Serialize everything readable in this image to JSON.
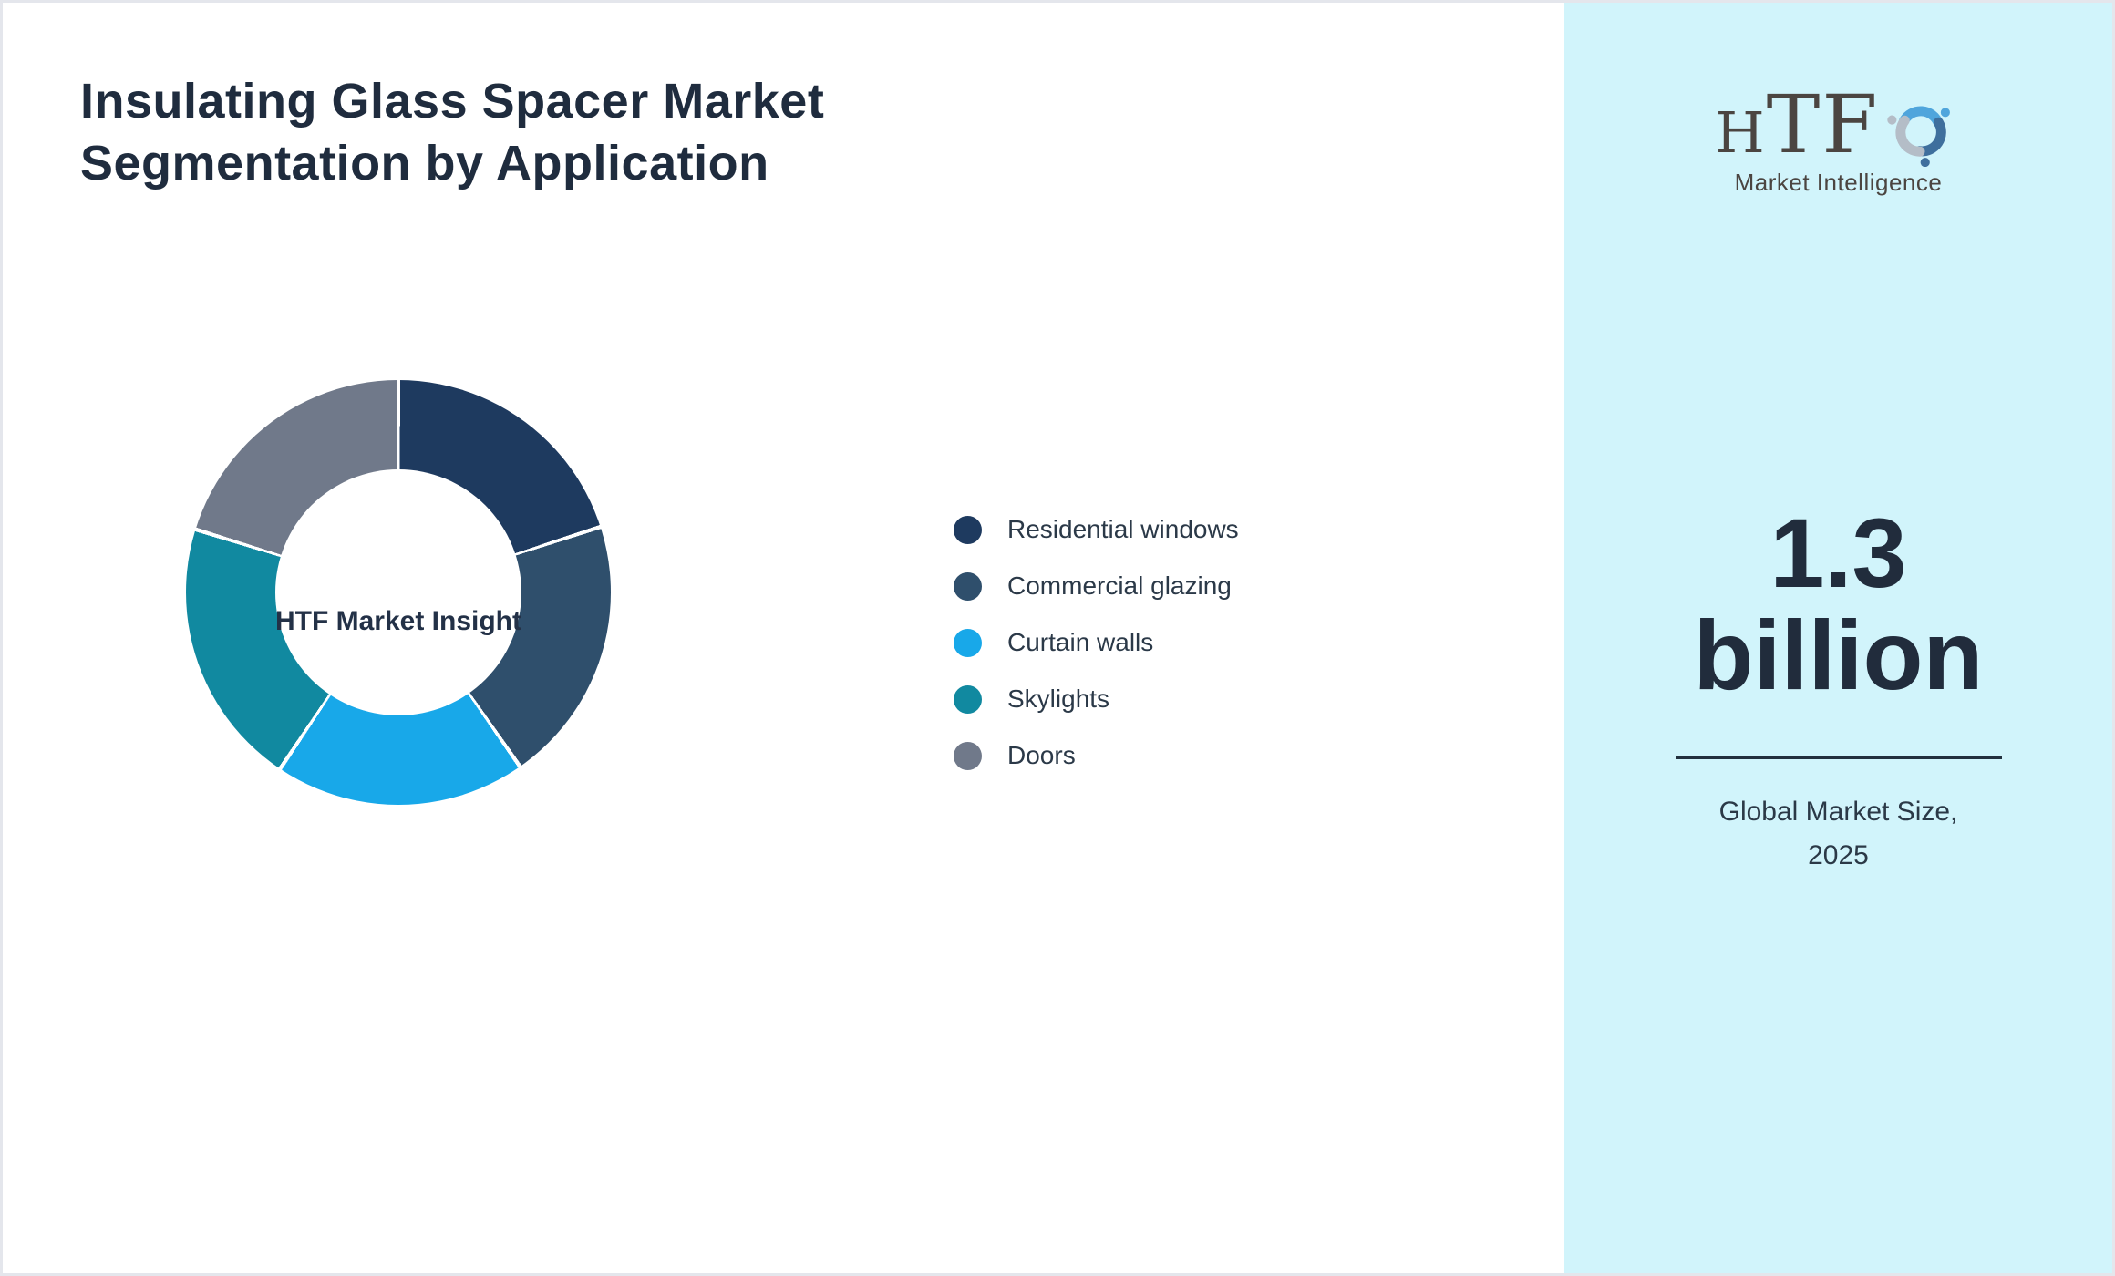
{
  "page": {
    "title": "Insulating Glass Spacer Market Segmentation by Application",
    "background": "#ffffff",
    "border_color": "#e4e6ec"
  },
  "chart_data": {
    "type": "pie",
    "variant": "donut",
    "title": "Insulating Glass Spacer Market Segmentation by Application",
    "center_label": "HTF Market Insight",
    "categories": [
      "Residential windows",
      "Commercial glazing",
      "Curtain walls",
      "Skylights",
      "Doors"
    ],
    "values_pct": [
      20.0,
      20.3,
      19.1,
      20.4,
      20.2
    ],
    "colors": [
      "#1e3a5f",
      "#2f4f6c",
      "#18a8e9",
      "#1189a0",
      "#70798a"
    ],
    "start_angle_deg": 0,
    "separator_color": "#ffffff",
    "separator_gap_deg": 1.1,
    "inner_radius_ratio": 0.58,
    "legend_position": "right",
    "legend_text_color": "#2b3948"
  },
  "sidebar": {
    "background": "#d1f4fb",
    "logo": {
      "letters_small": "H",
      "letters_large": "TF",
      "subtext": "Market Intelligence",
      "icon": "dolphin-swirl-icon",
      "icon_colors": [
        "#4fa5dc",
        "#3e6f9d",
        "#b4bdc7"
      ],
      "text_color": "#4b4541"
    },
    "market_size": {
      "value": "1.3 billion",
      "caption": "Global Market Size, 2025",
      "value_color": "#212c3c"
    }
  }
}
